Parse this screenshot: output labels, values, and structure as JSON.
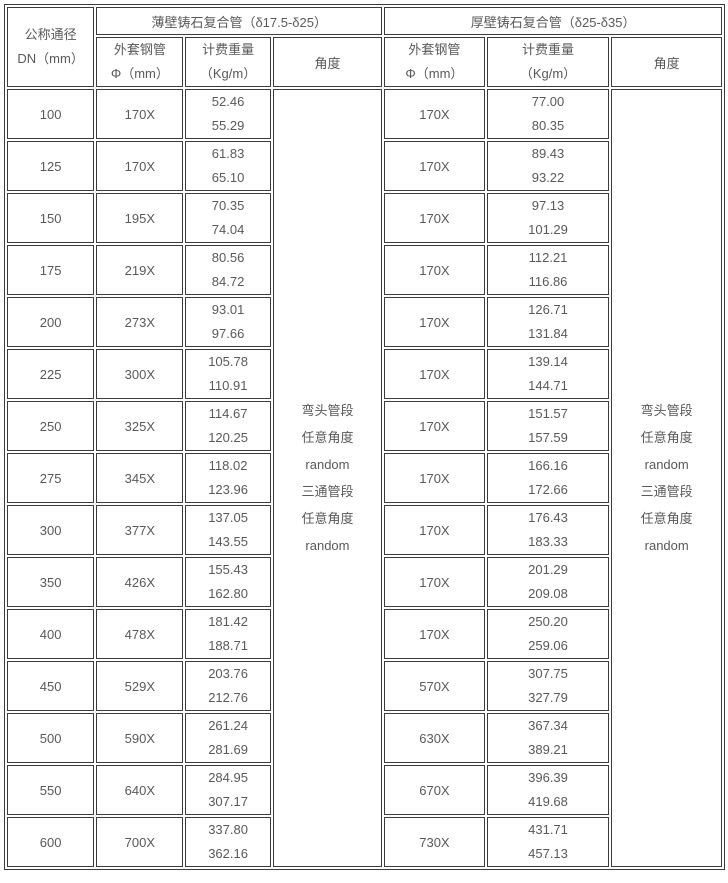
{
  "colors": {
    "border": "#3c3c3c",
    "text": "#595959",
    "background": "#ffffff"
  },
  "header": {
    "dn_line1": "公称通径",
    "dn_line2": "DN（mm）",
    "thin_title": "薄壁铸石复合管（δ17.5-δ25）",
    "thick_title": "厚壁铸石复合管（δ25-δ35）",
    "pipe_line1": "外套钢管",
    "pipe_line2": "Φ（mm）",
    "weight_line1": "计费重量",
    "weight_line2": "（Kg/m）",
    "angle": "角度"
  },
  "angle_text": [
    "弯头管段",
    "任意角度",
    "random",
    "三通管段",
    "任意角度",
    "random"
  ],
  "rows": [
    {
      "dn": "100",
      "thin_pipe": "170X",
      "thin_w": [
        "52.46",
        "55.29"
      ],
      "thick_pipe": "170X",
      "thick_w": [
        "77.00",
        "80.35"
      ]
    },
    {
      "dn": "125",
      "thin_pipe": "170X",
      "thin_w": [
        "61.83",
        "65.10"
      ],
      "thick_pipe": "170X",
      "thick_w": [
        "89.43",
        "93.22"
      ]
    },
    {
      "dn": "150",
      "thin_pipe": "195X",
      "thin_w": [
        "70.35",
        "74.04"
      ],
      "thick_pipe": "170X",
      "thick_w": [
        "97.13",
        "101.29"
      ]
    },
    {
      "dn": "175",
      "thin_pipe": "219X",
      "thin_w": [
        "80.56",
        "84.72"
      ],
      "thick_pipe": "170X",
      "thick_w": [
        "112.21",
        "116.86"
      ]
    },
    {
      "dn": "200",
      "thin_pipe": "273X",
      "thin_w": [
        "93.01",
        "97.66"
      ],
      "thick_pipe": "170X",
      "thick_w": [
        "126.71",
        "131.84"
      ]
    },
    {
      "dn": "225",
      "thin_pipe": "300X",
      "thin_w": [
        "105.78",
        "110.91"
      ],
      "thick_pipe": "170X",
      "thick_w": [
        "139.14",
        "144.71"
      ]
    },
    {
      "dn": "250",
      "thin_pipe": "325X",
      "thin_w": [
        "114.67",
        "120.25"
      ],
      "thick_pipe": "170X",
      "thick_w": [
        "151.57",
        "157.59"
      ]
    },
    {
      "dn": "275",
      "thin_pipe": "345X",
      "thin_w": [
        "118.02",
        "123.96"
      ],
      "thick_pipe": "170X",
      "thick_w": [
        "166.16",
        "172.66"
      ]
    },
    {
      "dn": "300",
      "thin_pipe": "377X",
      "thin_w": [
        "137.05",
        "143.55"
      ],
      "thick_pipe": "170X",
      "thick_w": [
        "176.43",
        "183.33"
      ]
    },
    {
      "dn": "350",
      "thin_pipe": "426X",
      "thin_w": [
        "155.43",
        "162.80"
      ],
      "thick_pipe": "170X",
      "thick_w": [
        "201.29",
        "209.08"
      ]
    },
    {
      "dn": "400",
      "thin_pipe": "478X",
      "thin_w": [
        "181.42",
        "188.71"
      ],
      "thick_pipe": "170X",
      "thick_w": [
        "250.20",
        "259.06"
      ]
    },
    {
      "dn": "450",
      "thin_pipe": "529X",
      "thin_w": [
        "203.76",
        "212.76"
      ],
      "thick_pipe": "570X",
      "thick_w": [
        "307.75",
        "327.79"
      ]
    },
    {
      "dn": "500",
      "thin_pipe": "590X",
      "thin_w": [
        "261.24",
        "281.69"
      ],
      "thick_pipe": "630X",
      "thick_w": [
        "367.34",
        "389.21"
      ]
    },
    {
      "dn": "550",
      "thin_pipe": "640X",
      "thin_w": [
        "284.95",
        "307.17"
      ],
      "thick_pipe": "670X",
      "thick_w": [
        "396.39",
        "419.68"
      ]
    },
    {
      "dn": "600",
      "thin_pipe": "700X",
      "thin_w": [
        "337.80",
        "362.16"
      ],
      "thick_pipe": "730X",
      "thick_w": [
        "431.71",
        "457.13"
      ]
    }
  ]
}
